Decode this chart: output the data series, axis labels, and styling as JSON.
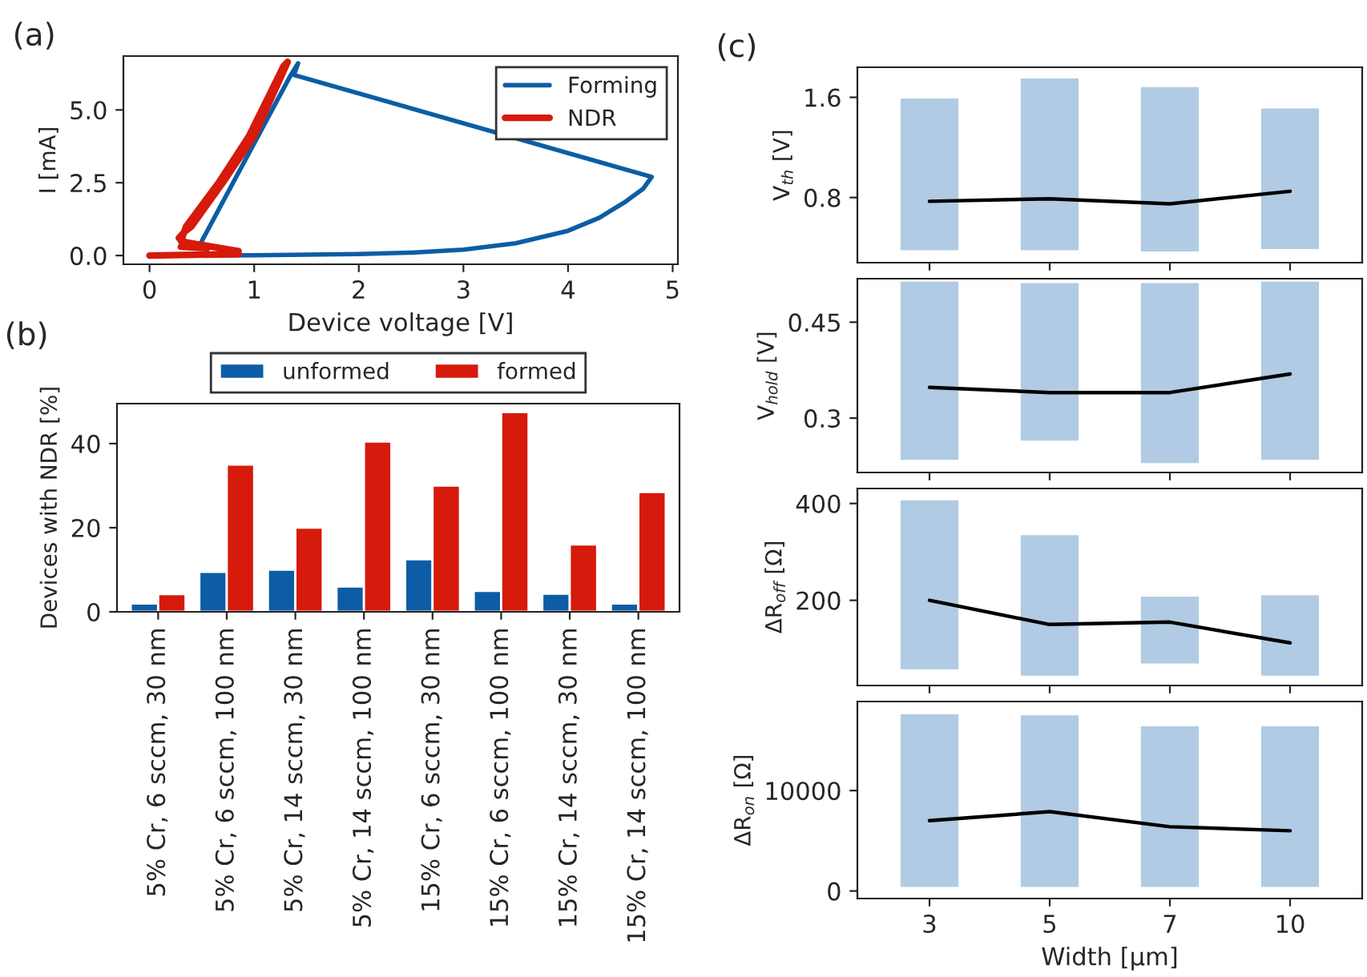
{
  "chart_data": [
    {
      "type": "line",
      "xlabel": "Device voltage [V]",
      "ylabel": "I [mA]",
      "annotations": [
        "(a)"
      ],
      "xlim": [
        -0.25,
        5.05
      ],
      "ylim": [
        -0.3,
        6.85
      ],
      "xticks": [
        0,
        1,
        2,
        3,
        4,
        5
      ],
      "yticks": [
        {
          "value": 0,
          "label": "0.0"
        },
        {
          "value": 2.5,
          "label": "2.5"
        },
        {
          "value": 5,
          "label": "5.0"
        }
      ],
      "legend": "top right",
      "line_style": "solid",
      "series": [
        {
          "name": "Forming",
          "color": "#0c5da5",
          "x": [
            0.5,
            1,
            2,
            2.5,
            3,
            3.5,
            4,
            4.3,
            4.55,
            4.72,
            4.8,
            1.38,
            1.42,
            1.35,
            0.5,
            0.48
          ],
          "values": [
            0,
            0.01,
            0.05,
            0.1,
            0.2,
            0.42,
            0.85,
            1.3,
            1.85,
            2.3,
            2.7,
            6.2,
            6.6,
            6.2,
            0.5,
            0.25
          ]
        },
        {
          "name": "NDR",
          "color": "#d61a0b",
          "x": [
            0,
            0.85,
            0.85,
            0.35,
            0.28,
            0.33,
            0.4,
            0.7,
            1.0,
            1.32,
            1.28,
            0.95,
            0.66,
            0.35,
            0.3,
            0.55,
            0.3
          ],
          "values": [
            0,
            0.05,
            0.15,
            0.45,
            0.6,
            0.8,
            1.0,
            2.5,
            4.1,
            6.65,
            6.5,
            4.1,
            2.5,
            1.0,
            0.5,
            0.25,
            0.3
          ]
        }
      ]
    },
    {
      "type": "bar",
      "ylabel": "Devices with NDR [%]",
      "annotations": [
        "(b)"
      ],
      "ylim": [
        0,
        49.5
      ],
      "yticks": [
        0,
        20,
        40
      ],
      "legend": "top",
      "categories": [
        "5% Cr, 6 sccm, 30 nm",
        "5% Cr, 6 sccm, 100 nm",
        "5% Cr, 14 sccm, 30 nm",
        "5% Cr, 14 sccm, 100 nm",
        "15% Cr, 6 sccm, 30 nm",
        "15% Cr, 6 sccm, 100 nm",
        "15% Cr, 14 sccm, 30 nm",
        "15% Cr, 14 sccm, 100 nm"
      ],
      "series": [
        {
          "name": "unformed",
          "color": "#0c5da5",
          "values": [
            2,
            9.5,
            10,
            6,
            12.5,
            5,
            4.3,
            2
          ]
        },
        {
          "name": "formed",
          "color": "#d61a0b",
          "values": [
            4.2,
            35,
            20,
            40.5,
            30,
            47.5,
            16,
            28.5
          ]
        }
      ]
    },
    {
      "type": "bar",
      "ylabel": "V$_{th}$ [V]",
      "annotations": [
        "(c)"
      ],
      "ylim": [
        0.28,
        1.84
      ],
      "yticks": [
        0.8,
        1.6
      ],
      "tick_labels": "y",
      "categories": [
        "3",
        "5",
        "7",
        "10"
      ],
      "series": [
        {
          "type": "bar",
          "color": "#b0cbe3",
          "base": [
            0.37,
            0.37,
            0.36,
            0.38
          ],
          "values": [
            1.23,
            1.39,
            1.33,
            1.14
          ]
        },
        {
          "type": "line",
          "color": "#000000",
          "values": [
            0.77,
            0.79,
            0.75,
            0.85
          ]
        }
      ]
    },
    {
      "type": "bar",
      "ylabel": "V$_{hold}$ [V]",
      "ylim": [
        0.215,
        0.518
      ],
      "yticks": [
        0.3,
        {
          "value": 0.45,
          "label": "0.45"
        }
      ],
      "tick_labels": "y",
      "categories": [
        "3",
        "5",
        "7",
        "10"
      ],
      "series": [
        {
          "type": "bar",
          "color": "#b0cbe3",
          "base": [
            0.233,
            0.263,
            0.228,
            0.233
          ],
          "values": [
            0.282,
            0.25,
            0.285,
            0.282
          ]
        },
        {
          "type": "line",
          "color": "#000000",
          "values": [
            0.348,
            0.34,
            0.34,
            0.369
          ]
        }
      ]
    },
    {
      "type": "bar",
      "ylabel": "ΔR$_{off}$ [Ω]",
      "ylim": [
        24,
        431
      ],
      "yticks": [
        200,
        400
      ],
      "tick_labels": "y",
      "categories": [
        "3",
        "5",
        "7",
        "10"
      ],
      "series": [
        {
          "type": "bar",
          "color": "#b0cbe3",
          "base": [
            55,
            42,
            67,
            42
          ],
          "values": [
            354,
            295,
            143,
            171
          ]
        },
        {
          "type": "line",
          "color": "#000000",
          "values": [
            200,
            150,
            155,
            112
          ]
        }
      ]
    },
    {
      "type": "bar",
      "ylabel": "ΔR$_{on}$ [Ω]",
      "xlabel": "Width [μm]",
      "ylim": [
        -750,
        18870
      ],
      "yticks": [
        0,
        10000
      ],
      "categories": [
        "3",
        "5",
        "7",
        "10"
      ],
      "series": [
        {
          "type": "bar",
          "color": "#b0cbe3",
          "base": [
            300,
            300,
            300,
            300
          ],
          "values": [
            17400,
            17300,
            16200,
            16200
          ]
        },
        {
          "type": "line",
          "color": "#000000",
          "values": [
            7000,
            7900,
            6400,
            6000
          ]
        }
      ]
    }
  ]
}
